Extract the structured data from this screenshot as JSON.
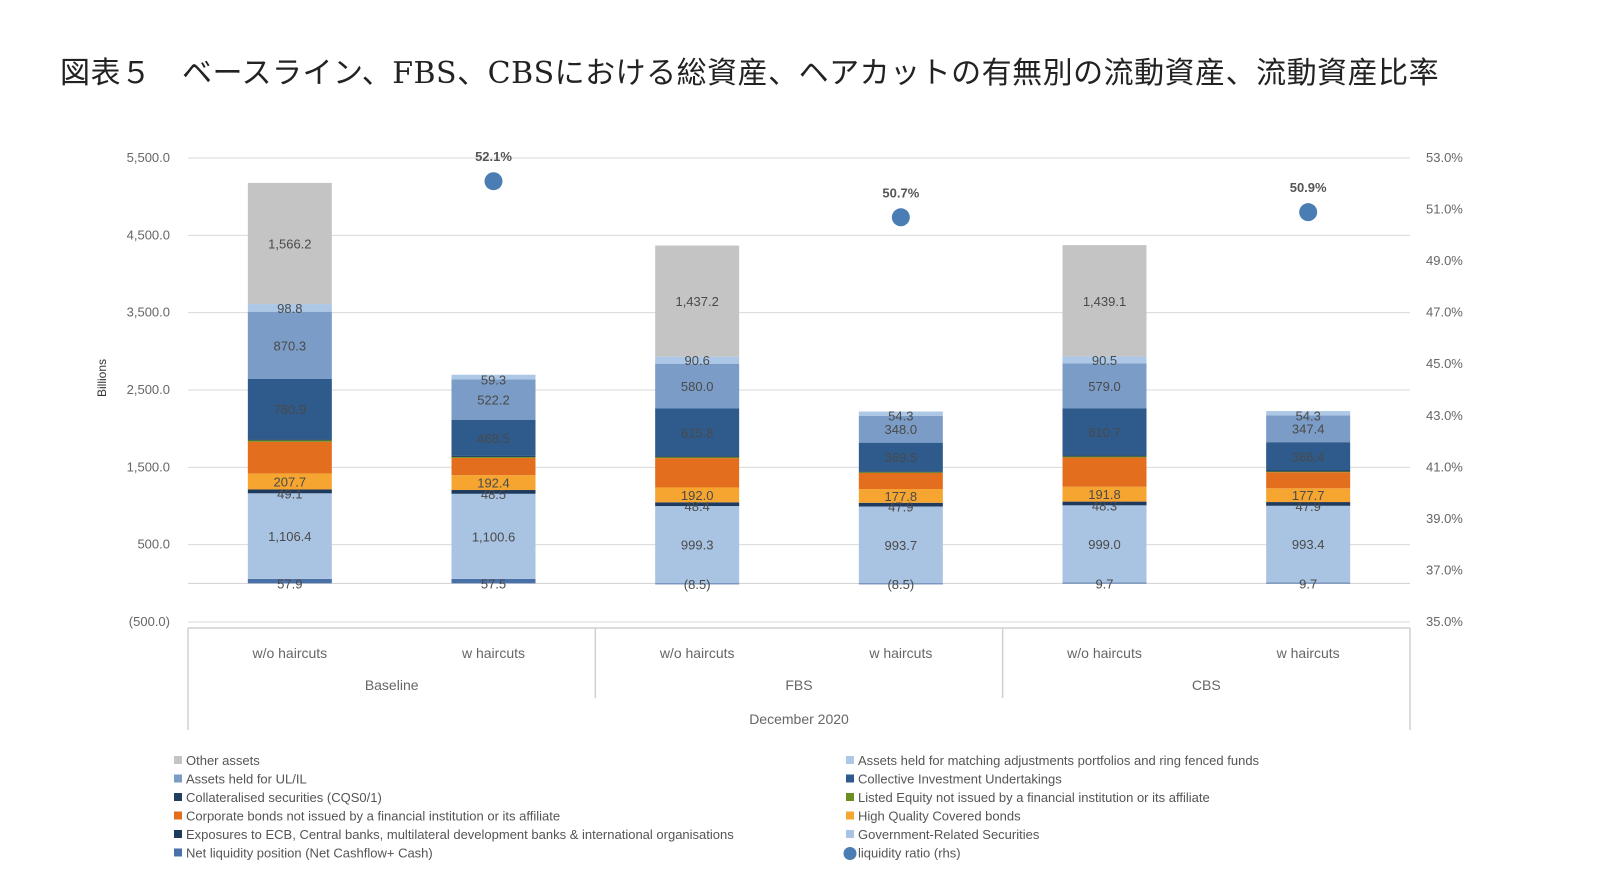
{
  "title": "図表５　ベースライン、FBS、CBSにおける総資産、ヘアカットの有無別の流動資産、流動資産比率",
  "chart_data": {
    "type": "bar",
    "stacked": true,
    "ylabel": "Billions",
    "ylim": [
      -500,
      5500
    ],
    "yticks": [
      "5,500.0",
      "4,500.0",
      "3,500.0",
      "2,500.0",
      "1,500.0",
      "500.0",
      "(500.0)"
    ],
    "ytick_values": [
      5500,
      4500,
      3500,
      2500,
      1500,
      500,
      -500
    ],
    "y2lim": [
      35,
      53
    ],
    "y2ticks": [
      "53.0%",
      "51.0%",
      "49.0%",
      "47.0%",
      "45.0%",
      "43.0%",
      "41.0%",
      "39.0%",
      "37.0%",
      "35.0%"
    ],
    "y2tick_values": [
      53,
      51,
      49,
      47,
      45,
      43,
      41,
      39,
      37,
      35
    ],
    "categories": [
      "w/o haircuts",
      "w haircuts",
      "w/o haircuts",
      "w haircuts",
      "w/o haircuts",
      "w haircuts"
    ],
    "groups": [
      "Baseline",
      "FBS",
      "CBS"
    ],
    "date_label": "December 2020",
    "series": [
      {
        "name": "Net liquidity position (Net Cashflow+ Cash)",
        "color": "#4a70a8",
        "values": [
          57.9,
          57.5,
          -8.5,
          -8.5,
          9.7,
          9.7
        ],
        "labels": [
          "57.9",
          "57.5",
          "(8.5)",
          "(8.5)",
          "9.7",
          "9.7"
        ]
      },
      {
        "name": "Government-Related Securities",
        "color": "#a9c3e2",
        "values": [
          1106.4,
          1100.6,
          999.3,
          993.7,
          999.0,
          993.4
        ],
        "labels": [
          "1,106.4",
          "1,100.6",
          "999.3",
          "993.7",
          "999.0",
          "993.4"
        ]
      },
      {
        "name": "Exposures to ECB, Central banks, multilateral development banks & international organisations",
        "color": "#1f3a5f",
        "values": [
          49.1,
          48.5,
          48.4,
          47.9,
          48.3,
          47.9
        ],
        "labels": [
          "49.1",
          "48.5",
          "48.4",
          "47.9",
          "48.3",
          "47.9"
        ]
      },
      {
        "name": "High Quality Covered bonds",
        "color": "#f6a630",
        "values": [
          207.7,
          192.4,
          192.0,
          177.8,
          191.8,
          177.7
        ],
        "labels": [
          "207.7",
          "192.4",
          "192.0",
          "177.8",
          "191.8",
          "177.7"
        ]
      },
      {
        "name": "Corporate bonds not issued by a financial institution or its affiliate",
        "color": "#e36f1e",
        "values": [
          409.5,
          223.5,
          379.4,
          208.6,
          379.4,
          208.6
        ],
        "labels": [
          "",
          "",
          "",
          "",
          "",
          ""
        ]
      },
      {
        "name": "Listed Equity not issued by a financial institution or its affiliate",
        "color": "#6b8e23",
        "values": [
          26.1,
          20.0,
          20.7,
          16.7,
          20.7,
          16.7
        ],
        "labels": [
          "",
          "",
          "",
          "",
          "",
          ""
        ]
      },
      {
        "name": "Collateralised securities (CQS0/1)",
        "color": "#233e63",
        "values": [
          5.0,
          5.0,
          5.0,
          5.0,
          5.0,
          5.0
        ],
        "labels": [
          "",
          "",
          "",
          "",
          "",
          ""
        ]
      },
      {
        "name": "Collective Investment Undertakings",
        "color": "#2e5a8c",
        "values": [
          780.9,
          468.5,
          615.8,
          369.5,
          610.7,
          366.4
        ],
        "labels": [
          "780.9",
          "468.5",
          "615.8",
          "369.5",
          "610.7",
          "366.4"
        ]
      },
      {
        "name": "Assets held for UL/IL",
        "color": "#7a9cc6",
        "values": [
          870.3,
          522.2,
          580.0,
          348.0,
          579.0,
          347.4
        ],
        "labels": [
          "870.3",
          "522.2",
          "580.0",
          "348.0",
          "579.0",
          "347.4"
        ]
      },
      {
        "name": "Assets held for matching adjustments portfolios and ring fenced funds",
        "color": "#adc8e6",
        "values": [
          98.8,
          59.3,
          90.6,
          54.3,
          90.5,
          54.3
        ],
        "labels": [
          "98.8",
          "59.3",
          "90.6",
          "54.3",
          "90.5",
          "54.3"
        ]
      },
      {
        "name": "Other assets",
        "color": "#c4c4c4",
        "values": [
          1566.2,
          0,
          1437.2,
          0,
          1439.1,
          0
        ],
        "labels": [
          "1,566.2",
          "",
          "1,437.2",
          "",
          "1,439.1",
          ""
        ]
      }
    ],
    "liquidity_ratio": {
      "name": "liquidity ratio (rhs)",
      "color": "#4a7db4",
      "positions": [
        1,
        3,
        5
      ],
      "values": [
        52.1,
        50.7,
        50.9
      ],
      "labels": [
        "52.1%",
        "50.7%",
        "50.9%"
      ]
    },
    "legend": {
      "placement": "bottom",
      "left": [
        {
          "label": "Other assets",
          "color": "#c4c4c4",
          "shape": "square"
        },
        {
          "label": "Assets held for UL/IL",
          "color": "#7a9cc6",
          "shape": "square"
        },
        {
          "label": "Collateralised securities (CQS0/1)",
          "color": "#233e63",
          "shape": "square"
        },
        {
          "label": "Corporate bonds not issued by a financial institution or its affiliate",
          "color": "#e36f1e",
          "shape": "square"
        },
        {
          "label": "Exposures to ECB, Central banks, multilateral development banks & international organisations",
          "color": "#1f3a5f",
          "shape": "square"
        },
        {
          "label": "Net liquidity position (Net Cashflow+ Cash)",
          "color": "#4a70a8",
          "shape": "square"
        }
      ],
      "right": [
        {
          "label": "Assets held for matching adjustments portfolios and ring fenced funds",
          "color": "#adc8e6",
          "shape": "square"
        },
        {
          "label": "Collective Investment Undertakings",
          "color": "#2e5a8c",
          "shape": "square"
        },
        {
          "label": "Listed Equity not issued by a financial institution or its affiliate",
          "color": "#6b8e23",
          "shape": "square"
        },
        {
          "label": "High Quality Covered bonds",
          "color": "#f6a630",
          "shape": "square"
        },
        {
          "label": "Government-Related Securities",
          "color": "#a9c3e2",
          "shape": "square"
        },
        {
          "label": "liquidity ratio (rhs)",
          "color": "#4a7db4",
          "shape": "circle"
        }
      ]
    }
  }
}
